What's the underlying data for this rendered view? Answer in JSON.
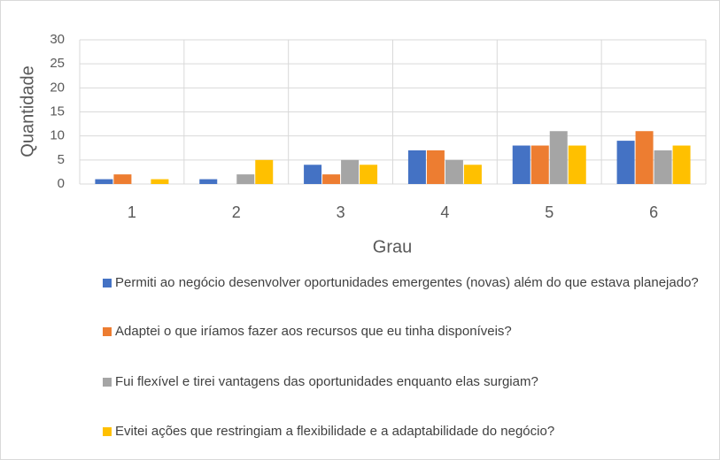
{
  "chart_data": {
    "type": "bar",
    "x_label": "Grau",
    "y_label": "Quantidade",
    "categories": [
      "1",
      "2",
      "3",
      "4",
      "5",
      "6"
    ],
    "series": [
      {
        "name": "Permiti ao negócio desenvolver oportunidades emergentes (novas) além do que estava planejado?",
        "color": "#4472c4",
        "values": [
          1,
          1,
          4,
          7,
          8,
          9
        ]
      },
      {
        "name": "Adaptei o que iríamos fazer aos recursos que eu tinha disponíveis?",
        "color": "#ed7d31",
        "values": [
          2,
          0,
          2,
          7,
          8,
          11
        ]
      },
      {
        "name": "Fui flexível e tirei vantagens das oportunidades enquanto elas surgiam?",
        "color": "#a5a5a5",
        "values": [
          0,
          2,
          5,
          5,
          11,
          7
        ]
      },
      {
        "name": "Evitei ações que restringiam a flexibilidade e a adaptabilidade do negócio?",
        "color": "#ffc000",
        "values": [
          1,
          5,
          4,
          4,
          8,
          8
        ]
      }
    ],
    "ylim": [
      0,
      30
    ],
    "yticks": [
      0,
      5,
      10,
      15,
      20,
      25,
      30
    ],
    "grid": true,
    "legend": "bottom"
  }
}
